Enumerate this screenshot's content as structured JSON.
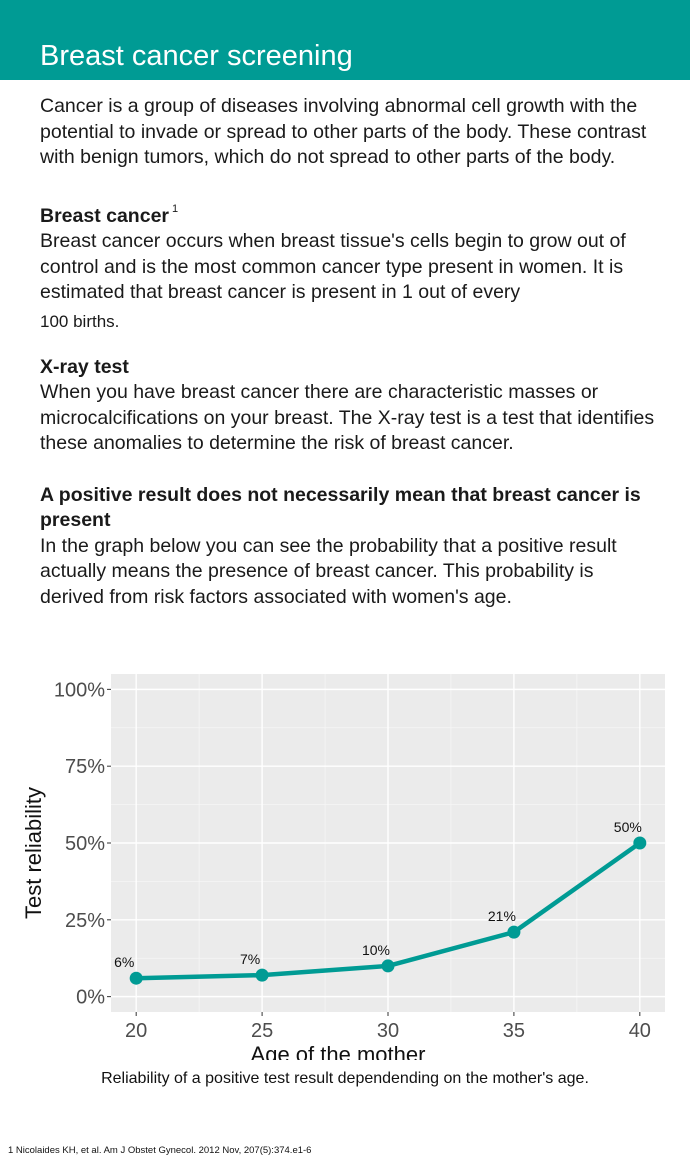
{
  "header": {
    "title": "Breast cancer screening"
  },
  "intro": "Cancer is a group of diseases involving abnormal cell growth with the potential to invade or spread to other parts of the body. These contrast with benign tumors, which do not spread to other parts of the body.",
  "sections": [
    {
      "title": "Breast cancer",
      "sup": "1",
      "body": "Breast cancer occurs when breast tissue's cells begin to grow out of control and is the most common cancer type present in women. It is estimated that breast cancer is present in 1 out of every",
      "body_tail": "100 births."
    },
    {
      "title": "X-ray test",
      "body": "When you have breast cancer there are characteristic masses or microcalcifications on your breast. The X-ray test is a test that identifies these anomalies to determine the risk of breast cancer."
    },
    {
      "title": "A positive result does not necessarily mean that breast cancer is present",
      "body": "In the graph below you can see the probability that a positive result actually means the presence of breast cancer. This probability is derived from risk factors associated with women's age."
    }
  ],
  "chart_data": {
    "type": "line",
    "x": [
      20,
      25,
      30,
      35,
      40
    ],
    "y": [
      6,
      7,
      10,
      21,
      50
    ],
    "point_labels": [
      "6%",
      "7%",
      "10%",
      "21%",
      "50%"
    ],
    "xlabel": "Age of the mother",
    "ylabel": "Test reliability",
    "x_ticks": [
      "20",
      "25",
      "30",
      "35",
      "40"
    ],
    "y_ticks": [
      "0%",
      "25%",
      "50%",
      "75%",
      "100%"
    ],
    "y_tick_values": [
      0,
      25,
      50,
      75,
      100
    ],
    "xlim": [
      19,
      41
    ],
    "ylim": [
      -5,
      105
    ],
    "grid": true,
    "line_color": "#009b94",
    "panel_color": "#ebebeb"
  },
  "caption": "Reliability of a positive test result dependending on the mother's age.",
  "footnote": "1 Nicolaides KH, et al. Am J Obstet Gynecol. 2012 Nov, 207(5):374.e1-6"
}
